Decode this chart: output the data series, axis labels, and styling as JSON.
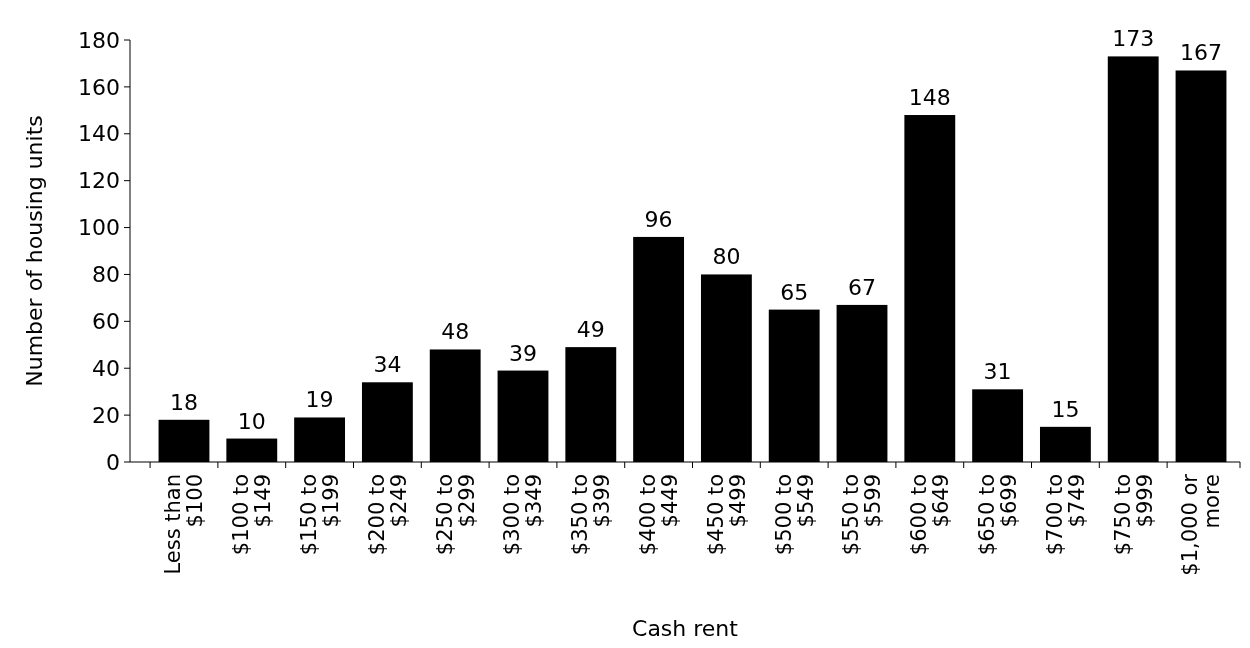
{
  "chart_data": {
    "type": "bar",
    "xlabel": "Cash rent",
    "ylabel": "Number of housing units",
    "categories": [
      "Less than $100",
      "$100 to $149",
      "$150 to $199",
      "$200 to $249",
      "$250 to $299",
      "$300 to $349",
      "$350 to $399",
      "$400 to $449",
      "$450 to $499",
      "$500 to $549",
      "$550 to $599",
      "$600 to $649",
      "$650 to $699",
      "$700 to $749",
      "$750 to $999",
      "$1,000 or more"
    ],
    "values": [
      18,
      10,
      19,
      34,
      48,
      39,
      49,
      96,
      80,
      65,
      67,
      148,
      31,
      15,
      173,
      167
    ],
    "color": "#000000",
    "ylim": [
      0,
      180
    ],
    "yticks": [
      0,
      20,
      40,
      60,
      80,
      100,
      120,
      140,
      160,
      180
    ],
    "data_labels": true,
    "grid": false
  }
}
